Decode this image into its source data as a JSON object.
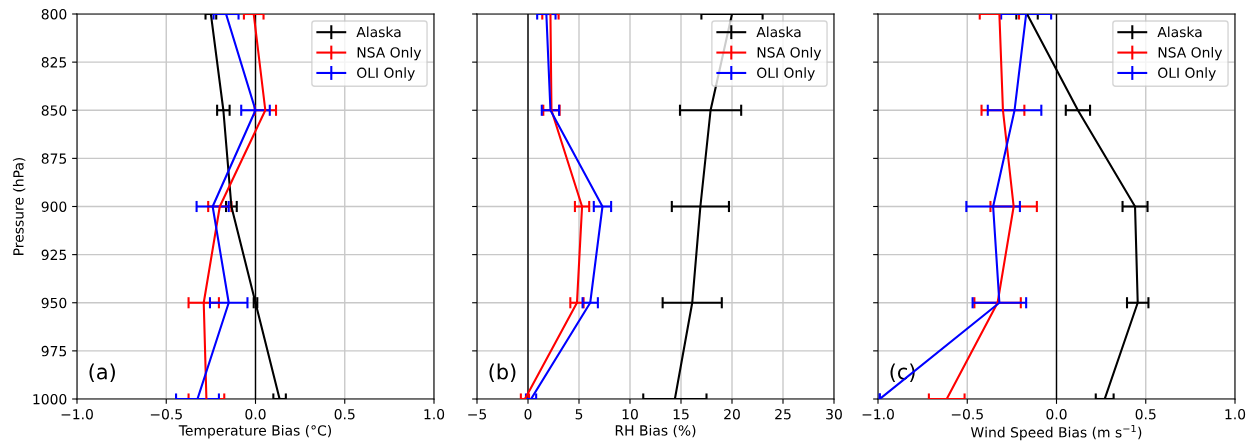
{
  "chart_data": [
    {
      "type": "line",
      "xlabel": "Temperature Bias (°C)",
      "ylabel": "Pressure (hPa)",
      "xlim": [
        -1.0,
        1.0
      ],
      "xticks": [
        {
          "value": -1.0,
          "label": "−1.0"
        },
        {
          "value": -0.5,
          "label": "−0.5"
        },
        {
          "value": 0.0,
          "label": "0.0"
        },
        {
          "value": 0.5,
          "label": "0.5"
        },
        {
          "value": 1.0,
          "label": "1.0"
        }
      ],
      "ylim": [
        1000,
        800
      ],
      "yticks": [
        800,
        825,
        850,
        875,
        900,
        925,
        950,
        975,
        1000
      ],
      "grid": true,
      "legend": "top right",
      "marker": "none",
      "line_style": "solid",
      "annotations": [
        "(a)"
      ],
      "ref_lines": [
        {
          "axis": "x",
          "value": 0,
          "color": "#000000"
        }
      ],
      "series": [
        {
          "name": "Alaska",
          "color": "#000000",
          "x": [
            -0.25,
            -0.18,
            -0.135,
            0.0,
            0.135
          ],
          "values": [
            800,
            850,
            900,
            950,
            1000
          ],
          "xerrors": [
            0.03,
            0.035,
            0.03,
            0.01,
            0.035
          ]
        },
        {
          "name": "NSA Only",
          "color": "#ff0000",
          "x": [
            -0.01,
            0.055,
            -0.2,
            -0.29,
            -0.275
          ],
          "values": [
            800,
            850,
            900,
            950,
            1000
          ],
          "xerrors": [
            0.055,
            0.06,
            0.065,
            0.085,
            0.1
          ]
        },
        {
          "name": "OLI Only",
          "color": "#0000ff",
          "x": [
            -0.165,
            0.0,
            -0.24,
            -0.15,
            -0.325
          ],
          "values": [
            800,
            850,
            900,
            950,
            1000
          ],
          "xerrors": [
            0.07,
            0.08,
            0.09,
            0.105,
            0.12
          ]
        }
      ]
    },
    {
      "type": "line",
      "xlabel": "RH Bias (%)",
      "xlim": [
        -5,
        30
      ],
      "xticks": [
        {
          "value": -5,
          "label": "−5"
        },
        0,
        5,
        10,
        15,
        20,
        25,
        30
      ],
      "ylim": [
        1000,
        800
      ],
      "yticks": [
        800,
        825,
        850,
        875,
        900,
        925,
        950,
        975,
        1000
      ],
      "tick_labels": "x",
      "grid": true,
      "legend": "top right",
      "marker": "none",
      "line_style": "solid",
      "annotations": [
        "(b)"
      ],
      "ref_lines": [
        {
          "axis": "x",
          "value": 0,
          "color": "#000000"
        }
      ],
      "series": [
        {
          "name": "Alaska",
          "color": "#000000",
          "x": [
            20.0,
            17.9,
            16.9,
            16.1,
            14.4
          ],
          "values": [
            800,
            850,
            900,
            950,
            1000
          ],
          "xerrors": [
            3.0,
            3.0,
            2.8,
            2.9,
            3.1
          ]
        },
        {
          "name": "NSA Only",
          "color": "#ff0000",
          "x": [
            2.2,
            2.3,
            5.3,
            4.8,
            -0.3
          ],
          "values": [
            800,
            850,
            900,
            950,
            1000
          ],
          "xerrors": [
            0.8,
            0.8,
            0.7,
            0.65,
            0.4
          ]
        },
        {
          "name": "OLI Only",
          "color": "#0000ff",
          "x": [
            1.8,
            2.2,
            7.3,
            6.1,
            0.3
          ],
          "values": [
            800,
            850,
            900,
            950,
            1000
          ],
          "xerrors": [
            0.9,
            0.85,
            0.85,
            0.75,
            0.5
          ]
        }
      ]
    },
    {
      "type": "line",
      "xlabel": "Wind Speed Bias (m s$^{−1}$)",
      "xlim": [
        -1.0,
        1.0
      ],
      "xticks": [
        {
          "value": -1.0,
          "label": "−1.0"
        },
        {
          "value": -0.5,
          "label": "−0.5"
        },
        {
          "value": 0.0,
          "label": "0.0"
        },
        {
          "value": 0.5,
          "label": "0.5"
        },
        {
          "value": 1.0,
          "label": "1.0"
        }
      ],
      "ylim": [
        1000,
        800
      ],
      "yticks": [
        800,
        825,
        850,
        875,
        900,
        925,
        950,
        975,
        1000
      ],
      "tick_labels": "x",
      "grid": true,
      "legend": "top right",
      "marker": "none",
      "line_style": "solid",
      "annotations": [
        "(c)"
      ],
      "ref_lines": [
        {
          "axis": "x",
          "value": 0,
          "color": "#000000"
        }
      ],
      "series": [
        {
          "name": "Alaska",
          "color": "#000000",
          "x": [
            -0.165,
            0.12,
            0.44,
            0.455,
            0.27
          ],
          "values": [
            800,
            850,
            900,
            950,
            1000
          ],
          "xerrors": [
            0.06,
            0.068,
            0.07,
            0.06,
            0.05
          ]
        },
        {
          "name": "NSA Only",
          "color": "#ff0000",
          "x": [
            -0.32,
            -0.3,
            -0.24,
            -0.33,
            -0.615
          ],
          "values": [
            800,
            850,
            900,
            950,
            1000
          ],
          "xerrors": [
            0.11,
            0.12,
            0.13,
            0.13,
            0.1
          ]
        },
        {
          "name": "OLI Only",
          "color": "#0000ff",
          "x": [
            -0.17,
            -0.235,
            -0.355,
            -0.32,
            -0.99
          ],
          "values": [
            800,
            850,
            900,
            950,
            1000
          ],
          "xerrors": [
            0.14,
            0.15,
            0.15,
            0.15,
            null
          ]
        }
      ]
    }
  ]
}
